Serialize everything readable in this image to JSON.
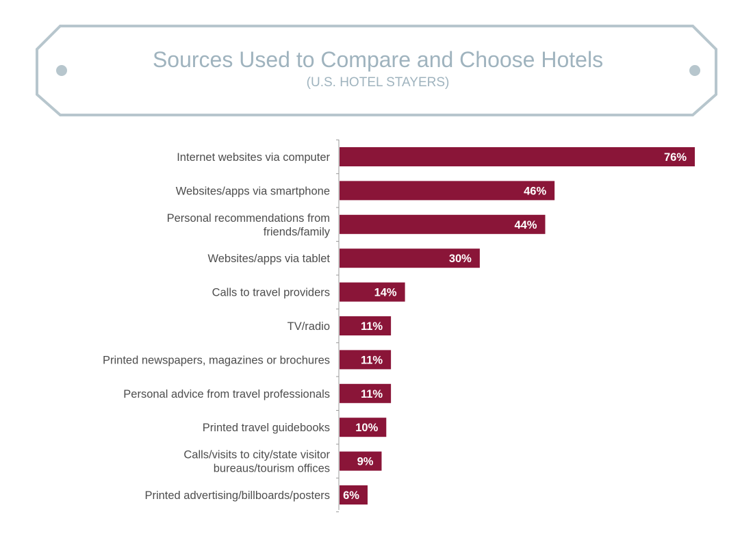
{
  "colors": {
    "bar": "#8a1538",
    "banner_border": "#b7c6cd",
    "title": "#9fb3be",
    "label": "#4d4d4d",
    "value_label": "#ffffff"
  },
  "chart_data": {
    "type": "bar",
    "orientation": "horizontal",
    "title": "Sources Used to Compare and Choose Hotels",
    "subtitle": "(U.S. HOTEL STAYERS)",
    "xlabel": "",
    "ylabel": "",
    "xlim": [
      0,
      76
    ],
    "grid": false,
    "legend": "none",
    "categories": [
      [
        "Internet websites via computer"
      ],
      [
        "Websites/apps via smartphone"
      ],
      [
        "Personal recommendations from",
        "friends/family"
      ],
      [
        "Websites/apps via tablet"
      ],
      [
        "Calls to travel providers"
      ],
      [
        "TV/radio"
      ],
      [
        "Printed newspapers, magazines or brochures"
      ],
      [
        "Personal advice from travel professionals"
      ],
      [
        "Printed travel guidebooks"
      ],
      [
        "Calls/visits to city/state visitor",
        "bureaus/tourism offices"
      ],
      [
        "Printed advertising/billboards/posters"
      ]
    ],
    "values": [
      76,
      46,
      44,
      30,
      14,
      11,
      11,
      11,
      10,
      9,
      6
    ],
    "value_labels": [
      "76%",
      "46%",
      "44%",
      "30%",
      "14%",
      "11%",
      "11%",
      "11%",
      "10%",
      "9%",
      "6%"
    ]
  }
}
